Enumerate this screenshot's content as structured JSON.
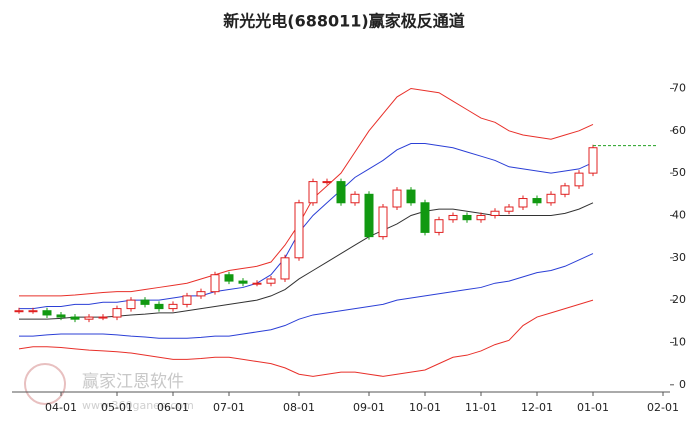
{
  "chart_data": {
    "type": "line",
    "title": "新光光电(688011)赢家极反通道",
    "watermark": "赢家江恩软件",
    "watermark_url": "www.360ganen.com",
    "categories": [
      null,
      null,
      null,
      "04-01",
      null,
      null,
      null,
      "05-01",
      null,
      null,
      null,
      "06-01",
      null,
      null,
      null,
      "07-01",
      null,
      null,
      null,
      null,
      "08-01",
      null,
      null,
      null,
      null,
      "09-01",
      null,
      null,
      null,
      "10-01",
      null,
      null,
      null,
      "11-01",
      null,
      null,
      null,
      "12-01",
      null,
      null,
      null,
      "01-01",
      null,
      null,
      null,
      null,
      "02-01"
    ],
    "ylim": [
      -1.7,
      72
    ],
    "yticks": [
      0,
      10,
      20,
      30,
      40,
      50,
      60,
      70
    ],
    "price": {
      "color_up": "#e02020",
      "color_down": "#119911",
      "values": [
        17.5,
        17.5,
        16.5,
        16,
        15.5,
        16,
        16,
        18,
        20,
        19,
        18,
        19,
        21,
        22,
        26,
        24.5,
        24,
        24,
        25,
        30,
        43,
        48,
        48,
        43,
        45,
        35,
        42,
        46,
        43,
        36,
        39,
        40,
        39,
        40,
        41,
        42,
        44,
        43,
        45,
        47,
        50,
        56,
        null,
        null,
        null,
        null,
        null
      ]
    },
    "reference_line": {
      "value": 56.5,
      "color": "#22a022"
    },
    "series": [
      {
        "color": "#e8302a",
        "values": [
          21,
          21,
          21,
          21,
          21.2,
          21.5,
          21.8,
          22,
          22,
          22.5,
          23,
          23.5,
          24,
          25,
          26,
          27,
          27.5,
          28,
          29,
          33,
          38,
          44,
          47,
          50,
          55,
          60,
          64,
          68,
          70,
          69.5,
          69,
          67,
          65,
          63,
          62,
          60,
          59,
          58.5,
          58,
          59,
          60,
          61.5,
          null,
          null,
          null,
          null,
          null
        ]
      },
      {
        "color": "#2b3fd6",
        "values": [
          18,
          18,
          18.5,
          18.5,
          19,
          19,
          19.5,
          19.5,
          20,
          20,
          20,
          20.5,
          21,
          21,
          22,
          22.5,
          23,
          24,
          26,
          30,
          36,
          40,
          43,
          46,
          49,
          51,
          53,
          55.5,
          57,
          57,
          56.5,
          56,
          55,
          54,
          53,
          51.5,
          51,
          50.5,
          50,
          50.5,
          51,
          52.5,
          null,
          null,
          null,
          null,
          null
        ]
      },
      {
        "color": "#333333",
        "values": [
          15.5,
          15.5,
          15.5,
          15.7,
          16,
          16,
          16,
          16.2,
          16.5,
          16.7,
          17,
          17,
          17.5,
          18,
          18.5,
          19,
          19.5,
          20,
          21,
          22.5,
          25,
          27,
          29,
          31,
          33,
          35,
          36.5,
          38,
          40,
          41,
          41.5,
          41.5,
          41,
          40.5,
          40,
          40,
          40,
          40,
          40,
          40.5,
          41.5,
          43,
          null,
          null,
          null,
          null,
          null
        ]
      },
      {
        "color": "#2b3fd6",
        "values": [
          11.5,
          11.5,
          11.8,
          12,
          12,
          12,
          12,
          11.8,
          11.5,
          11.3,
          11,
          11,
          11,
          11.2,
          11.5,
          11.5,
          12,
          12.5,
          13,
          14,
          15.5,
          16.5,
          17,
          17.5,
          18,
          18.5,
          19,
          20,
          20.5,
          21,
          21.5,
          22,
          22.5,
          23,
          24,
          24.5,
          25.5,
          26.5,
          27,
          28,
          29.5,
          31,
          null,
          null,
          null,
          null,
          null
        ]
      },
      {
        "color": "#e8302a",
        "values": [
          8.5,
          9,
          9,
          8.8,
          8.5,
          8.2,
          8,
          7.8,
          7.5,
          7,
          6.5,
          6,
          6,
          6.2,
          6.5,
          6.5,
          6,
          5.5,
          5,
          4,
          2.5,
          2,
          2.5,
          3,
          3,
          2.5,
          2,
          2.5,
          3,
          3.5,
          5,
          6.5,
          7,
          8,
          9.5,
          10.5,
          14,
          16,
          17,
          18,
          19,
          20,
          null,
          null,
          null,
          null,
          null
        ]
      }
    ]
  }
}
